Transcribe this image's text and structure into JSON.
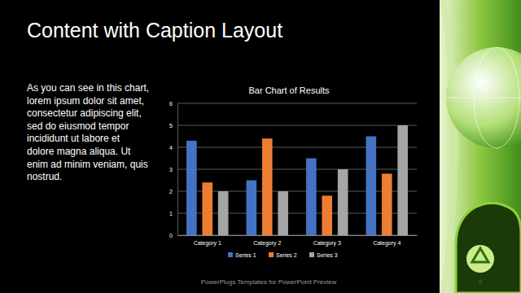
{
  "slide": {
    "title": "Content with Caption Layout",
    "caption": [
      "As you can see in this chart,",
      "lorem ipsum dolor sit amet,",
      "consectetur adipiscing elit,",
      "sed do eiusmod tempor",
      "incididunt ut labore et",
      "dolore magna aliqua. Ut",
      "enim ad minim veniam, quis",
      "nostrud."
    ],
    "footer": "PowerPlugs Templates for PowerPoint Preview",
    "page": "8"
  },
  "chart_data": {
    "type": "bar",
    "title": "Bar Chart of Results",
    "categories": [
      "Category 1",
      "Category 2",
      "Category 3",
      "Category 4"
    ],
    "series": [
      {
        "name": "Series 1",
        "color": "#4472c4",
        "values": [
          4.3,
          2.5,
          3.5,
          4.5
        ]
      },
      {
        "name": "Series 2",
        "color": "#ed7d31",
        "values": [
          2.4,
          4.4,
          1.8,
          2.8
        ]
      },
      {
        "name": "Series 3",
        "color": "#a5a5a5",
        "values": [
          2,
          2,
          3,
          5
        ]
      }
    ],
    "ylim": [
      0,
      6
    ],
    "yticks": [
      0,
      1,
      2,
      3,
      4,
      5,
      6
    ],
    "grid": true,
    "legend": "bottom"
  }
}
